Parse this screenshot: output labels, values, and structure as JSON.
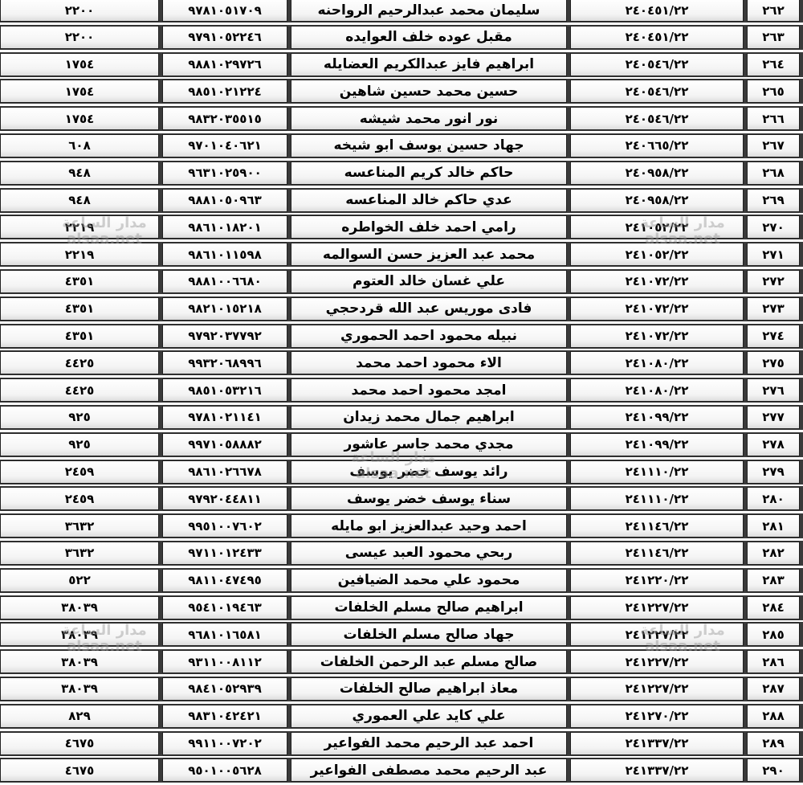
{
  "watermark": {
    "arabic": "مدار الساعة",
    "latin": "alsaa.net"
  },
  "rows": [
    {
      "num": "٢٦٢",
      "code": "٢٤٠٤٥١/٢٢",
      "name": "سليمان محمد عبدالرحيم الرواحنه",
      "id": "٩٧٨١٠٥١٧٠٩",
      "amount": "٢٢٠٠"
    },
    {
      "num": "٢٦٣",
      "code": "٢٤٠٤٥١/٢٢",
      "name": "مقبل عوده خلف العوايده",
      "id": "٩٧٩١٠٥٢٢٤٦",
      "amount": "٢٢٠٠"
    },
    {
      "num": "٢٦٤",
      "code": "٢٤٠٥٤٦/٢٢",
      "name": "ابراهيم فايز عبدالكريم العضايله",
      "id": "٩٨٨١٠٢٩٧٢٦",
      "amount": "١٧٥٤"
    },
    {
      "num": "٢٦٥",
      "code": "٢٤٠٥٤٦/٢٢",
      "name": "حسين محمد حسين شاهين",
      "id": "٩٨٥١٠٢١٢٢٤",
      "amount": "١٧٥٤"
    },
    {
      "num": "٢٦٦",
      "code": "٢٤٠٥٤٦/٢٢",
      "name": "نور انور محمد شيشه",
      "id": "٩٨٣٢٠٣٥٥١٥",
      "amount": "١٧٥٤"
    },
    {
      "num": "٢٦٧",
      "code": "٢٤٠٦٦٥/٢٢",
      "name": "جهاد حسين يوسف ابو شيخه",
      "id": "٩٧٠١٠٤٠٦٢١",
      "amount": "٦٠٨"
    },
    {
      "num": "٢٦٨",
      "code": "٢٤٠٩٥٨/٢٢",
      "name": "حاكم خالد كريم المناعسه",
      "id": "٩٦٣١٠٢٥٩٠٠",
      "amount": "٩٤٨"
    },
    {
      "num": "٢٦٩",
      "code": "٢٤٠٩٥٨/٢٢",
      "name": "عدي حاكم خالد المناعسه",
      "id": "٩٨٨١٠٥٠٩٦٣",
      "amount": "٩٤٨"
    },
    {
      "num": "٢٧٠",
      "code": "٢٤١٠٥٢/٢٢",
      "name": "رامي احمد خلف الخواطره",
      "id": "٩٨٦١٠١٨٢٠١",
      "amount": "٢٢١٩"
    },
    {
      "num": "٢٧١",
      "code": "٢٤١٠٥٢/٢٢",
      "name": "محمد عبد العزيز حسن السوالمه",
      "id": "٩٨٦١٠١١٥٩٨",
      "amount": "٢٢١٩"
    },
    {
      "num": "٢٧٢",
      "code": "٢٤١٠٧٢/٢٢",
      "name": "علي غسان خالد العتوم",
      "id": "٩٨٨١٠٠٦٦٨٠",
      "amount": "٤٣٥١"
    },
    {
      "num": "٢٧٣",
      "code": "٢٤١٠٧٢/٢٢",
      "name": "فادى موريس عبد الله قردحجي",
      "id": "٩٨٢١٠١٥٢١٨",
      "amount": "٤٣٥١"
    },
    {
      "num": "٢٧٤",
      "code": "٢٤١٠٧٢/٢٢",
      "name": "نبيله محمود احمد الحموري",
      "id": "٩٧٩٢٠٣٧٧٩٢",
      "amount": "٤٣٥١"
    },
    {
      "num": "٢٧٥",
      "code": "٢٤١٠٨٠/٢٢",
      "name": "الاء محمود احمد محمد",
      "id": "٩٩٣٢٠٦٨٩٩٦",
      "amount": "٤٤٢٥"
    },
    {
      "num": "٢٧٦",
      "code": "٢٤١٠٨٠/٢٢",
      "name": "امجد محمود احمد محمد",
      "id": "٩٨٥١٠٥٣٢١٦",
      "amount": "٤٤٢٥"
    },
    {
      "num": "٢٧٧",
      "code": "٢٤١٠٩٩/٢٢",
      "name": "ابراهيم جمال محمد زيدان",
      "id": "٩٧٨١٠٢١١٤١",
      "amount": "٩٢٥"
    },
    {
      "num": "٢٧٨",
      "code": "٢٤١٠٩٩/٢٢",
      "name": "مجدي محمد جاسر عاشور",
      "id": "٩٩٧١٠٥٨٨٨٢",
      "amount": "٩٢٥"
    },
    {
      "num": "٢٧٩",
      "code": "٢٤١١١٠/٢٢",
      "name": "رائد يوسف خضر يوسف",
      "id": "٩٨٦١٠٢٦٦٧٨",
      "amount": "٢٤٥٩"
    },
    {
      "num": "٢٨٠",
      "code": "٢٤١١١٠/٢٢",
      "name": "سناء يوسف خضر يوسف",
      "id": "٩٧٩٢٠٤٤٨١١",
      "amount": "٢٤٥٩"
    },
    {
      "num": "٢٨١",
      "code": "٢٤١١٤٦/٢٢",
      "name": "احمد وحيد عبدالعزيز ابو مايله",
      "id": "٩٩٥١٠٠٧٦٠٢",
      "amount": "٣٦٣٢"
    },
    {
      "num": "٢٨٢",
      "code": "٢٤١١٤٦/٢٢",
      "name": "ربحي محمود العبد عيسى",
      "id": "٩٧١١٠١٢٤٣٣",
      "amount": "٣٦٣٢"
    },
    {
      "num": "٢٨٣",
      "code": "٢٤١٢٢٠/٢٢",
      "name": "محمود علي محمد الضيافين",
      "id": "٩٨١١٠٤٧٤٩٥",
      "amount": "٥٢٢"
    },
    {
      "num": "٢٨٤",
      "code": "٢٤١٢٢٧/٢٢",
      "name": "ابراهيم صالح مسلم الخلفات",
      "id": "٩٥٤١٠١٩٤٦٣",
      "amount": "٣٨٠٣٩"
    },
    {
      "num": "٢٨٥",
      "code": "٢٤١٢٢٧/٢٢",
      "name": "جهاد صالح مسلم الخلفات",
      "id": "٩٦٨١٠١٦٥٨١",
      "amount": "٣٨٠٣٩"
    },
    {
      "num": "٢٨٦",
      "code": "٢٤١٢٢٧/٢٢",
      "name": "صالح مسلم عبد الرحمن الخلفات",
      "id": "٩٣١١٠٠٨١١٢",
      "amount": "٣٨٠٣٩"
    },
    {
      "num": "٢٨٧",
      "code": "٢٤١٢٢٧/٢٢",
      "name": "معاذ ابراهيم صالح الخلفات",
      "id": "٩٨٤١٠٥٢٩٣٩",
      "amount": "٣٨٠٣٩"
    },
    {
      "num": "٢٨٨",
      "code": "٢٤١٢٧٠/٢٢",
      "name": "علي كايد علي العموري",
      "id": "٩٨٣١٠٤٢٤٢١",
      "amount": "٨٢٩"
    },
    {
      "num": "٢٨٩",
      "code": "٢٤١٣٣٧/٢٢",
      "name": "احمد عبد الرحيم محمد الفواعير",
      "id": "٩٩١١٠٠٧٢٠٢",
      "amount": "٤٦٧٥"
    },
    {
      "num": "٢٩٠",
      "code": "٢٤١٣٣٧/٢٢",
      "name": "عبد الرحيم محمد مصطفى الفواعير",
      "id": "٩٥٠١٠٠٥٦٢٨",
      "amount": "٤٦٧٥"
    }
  ]
}
